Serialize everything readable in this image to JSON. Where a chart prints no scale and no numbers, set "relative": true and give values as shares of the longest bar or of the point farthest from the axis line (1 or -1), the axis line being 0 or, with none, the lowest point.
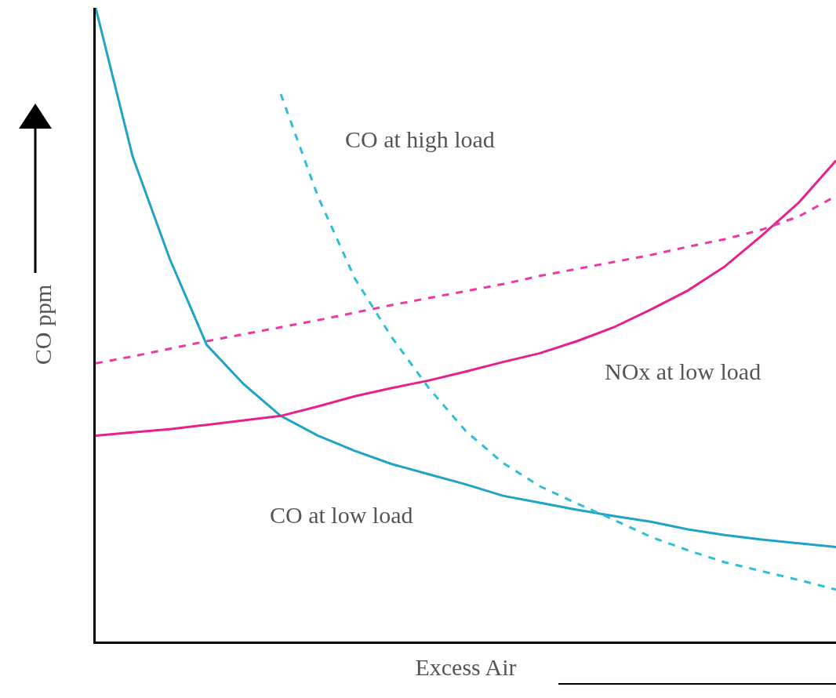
{
  "chart_data": {
    "type": "line",
    "relative": true,
    "xlabel": "Excess Air",
    "ylabel": "CO ppm",
    "legend": false,
    "grid": false,
    "marker": "none",
    "categories": [
      null,
      null,
      null,
      null,
      null,
      null,
      null,
      null,
      null,
      null,
      null,
      null,
      null,
      null,
      null,
      null,
      null,
      null,
      null,
      null,
      null
    ],
    "series": [
      {
        "name": "CO at low load",
        "color": "#1fa3c6",
        "line_style": "solid",
        "values": [
          1.0,
          0.765,
          0.604,
          0.468,
          0.406,
          0.356,
          0.325,
          0.301,
          0.28,
          0.264,
          0.248,
          0.23,
          0.219,
          0.208,
          0.198,
          0.189,
          0.177,
          0.168,
          0.161,
          0.155,
          0.149
        ]
      },
      {
        "name": "CO at high load",
        "color": "#2cbfd6",
        "line_style": "dashed",
        "values": [
          null,
          null,
          null,
          null,
          null,
          0.864,
          0.703,
          0.573,
          0.48,
          0.4,
          0.332,
          0.282,
          0.245,
          0.218,
          0.192,
          0.165,
          0.144,
          0.125,
          0.111,
          0.097,
          0.082
        ]
      },
      {
        "name": "NOx at low load",
        "color": "#e8208a",
        "line_style": "solid",
        "values": [
          0.325,
          0.33,
          0.335,
          0.342,
          0.349,
          0.356,
          0.371,
          0.387,
          0.4,
          0.412,
          0.426,
          0.441,
          0.455,
          0.474,
          0.496,
          0.524,
          0.554,
          0.592,
          0.641,
          0.693,
          0.759
        ]
      },
      {
        "color": "#ee3aa0",
        "line_style": "dashed",
        "values": [
          0.439,
          0.45,
          0.462,
          0.474,
          0.485,
          0.496,
          0.507,
          0.519,
          0.531,
          0.542,
          0.553,
          0.564,
          0.577,
          0.588,
          0.599,
          0.61,
          0.623,
          0.635,
          0.65,
          0.671,
          0.703
        ]
      }
    ]
  }
}
